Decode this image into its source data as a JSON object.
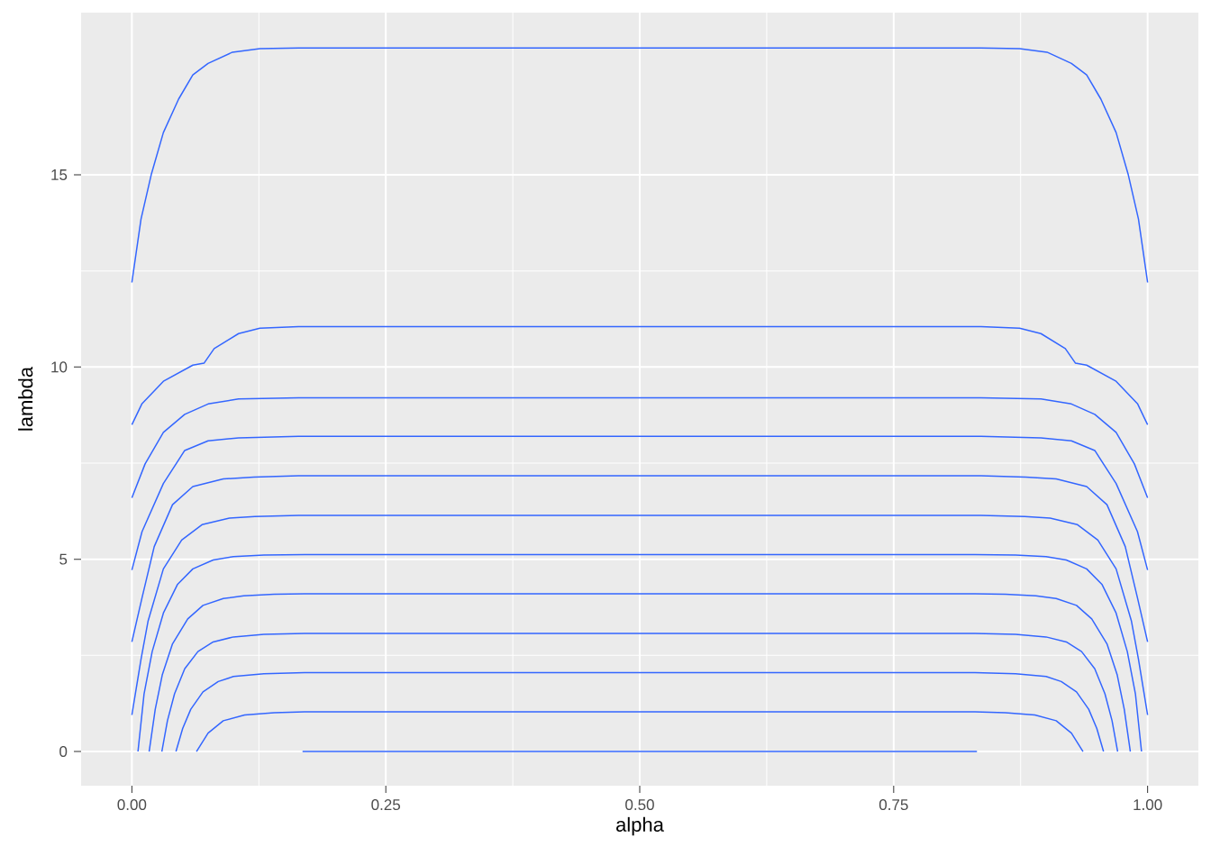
{
  "chart_data": {
    "type": "line",
    "xlabel": "alpha",
    "ylabel": "lambda",
    "xlim": [
      -0.05,
      1.05
    ],
    "ylim": [
      -0.89,
      19.22
    ],
    "xticks": [
      {
        "value": 0,
        "label": "0.00"
      },
      {
        "value": 0.25,
        "label": "0.25"
      },
      {
        "value": 0.5,
        "label": "0.50"
      },
      {
        "value": 0.75,
        "label": "0.75"
      },
      {
        "value": 1,
        "label": "1.00"
      }
    ],
    "yticks": [
      0,
      5,
      10,
      15
    ],
    "grid": true,
    "marker": "none",
    "line_style": "solid",
    "series": [
      {
        "color": "#3366ff",
        "x": [
          0,
          0.009,
          0.019,
          0.031,
          0.046,
          0.06,
          0.075,
          0.099,
          0.126,
          0.164,
          0.836,
          0.874,
          0.901,
          0.925,
          0.94,
          0.954,
          0.969,
          0.981,
          0.991,
          1
        ],
        "values": [
          12.2,
          13.85,
          15.0,
          16.1,
          16.97,
          17.6,
          17.9,
          18.19,
          18.28,
          18.3,
          18.3,
          18.28,
          18.19,
          17.9,
          17.6,
          16.97,
          16.1,
          15.0,
          13.85,
          12.2
        ]
      },
      {
        "color": "#3366ff",
        "x": [
          0,
          0.01,
          0.031,
          0.06,
          0.071,
          0.081,
          0.105,
          0.126,
          0.164,
          0.836,
          0.874,
          0.895,
          0.919,
          0.929,
          0.94,
          0.969,
          0.99,
          1
        ],
        "values": [
          8.5,
          9.05,
          9.63,
          10.05,
          10.1,
          10.48,
          10.87,
          11.01,
          11.05,
          11.05,
          11.01,
          10.87,
          10.48,
          10.1,
          10.05,
          9.63,
          9.05,
          8.5
        ]
      },
      {
        "color": "#3366ff",
        "x": [
          0,
          0.013,
          0.031,
          0.052,
          0.075,
          0.105,
          0.164,
          0.836,
          0.895,
          0.925,
          0.948,
          0.969,
          0.987,
          1
        ],
        "values": [
          6.6,
          7.48,
          8.3,
          8.77,
          9.04,
          9.17,
          9.2,
          9.2,
          9.17,
          9.04,
          8.77,
          8.3,
          7.48,
          6.6
        ]
      },
      {
        "color": "#3366ff",
        "x": [
          0,
          0.01,
          0.031,
          0.052,
          0.075,
          0.105,
          0.164,
          0.836,
          0.895,
          0.925,
          0.948,
          0.969,
          0.99,
          1
        ],
        "values": [
          4.72,
          5.72,
          6.97,
          7.83,
          8.08,
          8.16,
          8.2,
          8.2,
          8.16,
          8.08,
          7.83,
          6.97,
          5.72,
          4.72
        ]
      },
      {
        "color": "#3366ff",
        "x": [
          0,
          0.01,
          0.022,
          0.04,
          0.06,
          0.09,
          0.12,
          0.164,
          0.836,
          0.88,
          0.91,
          0.94,
          0.96,
          0.978,
          0.99,
          1
        ],
        "values": [
          2.85,
          4.0,
          5.33,
          6.42,
          6.89,
          7.09,
          7.14,
          7.17,
          7.17,
          7.14,
          7.09,
          6.89,
          6.42,
          5.33,
          4.0,
          2.85
        ]
      },
      {
        "color": "#3366ff",
        "x": [
          0,
          0.009,
          0.016,
          0.031,
          0.049,
          0.069,
          0.096,
          0.121,
          0.164,
          0.836,
          0.879,
          0.904,
          0.931,
          0.951,
          0.969,
          0.984,
          0.991,
          1
        ],
        "values": [
          0.95,
          2.4,
          3.4,
          4.75,
          5.5,
          5.9,
          6.07,
          6.11,
          6.14,
          6.14,
          6.11,
          6.07,
          5.9,
          5.5,
          4.75,
          3.4,
          2.4,
          0.95
        ]
      },
      {
        "color": "#3366ff",
        "x": [
          0.006,
          0.012,
          0.02,
          0.031,
          0.045,
          0.06,
          0.08,
          0.1,
          0.13,
          0.17,
          0.83,
          0.87,
          0.9,
          0.92,
          0.94,
          0.955,
          0.969,
          0.98,
          0.988,
          0.994
        ],
        "values": [
          0,
          1.5,
          2.6,
          3.6,
          4.35,
          4.75,
          4.98,
          5.07,
          5.11,
          5.12,
          5.12,
          5.11,
          5.07,
          4.98,
          4.75,
          4.35,
          3.6,
          2.6,
          1.5,
          0
        ]
      },
      {
        "color": "#3366ff",
        "x": [
          0.017,
          0.023,
          0.03,
          0.04,
          0.055,
          0.07,
          0.09,
          0.11,
          0.14,
          0.17,
          0.83,
          0.86,
          0.89,
          0.91,
          0.93,
          0.945,
          0.96,
          0.97,
          0.977,
          0.983
        ],
        "values": [
          0,
          1.1,
          2.0,
          2.8,
          3.45,
          3.8,
          3.98,
          4.05,
          4.09,
          4.1,
          4.1,
          4.09,
          4.05,
          3.98,
          3.8,
          3.45,
          2.8,
          2.0,
          1.1,
          0
        ]
      },
      {
        "color": "#3366ff",
        "x": [
          0.0295,
          0.035,
          0.042,
          0.052,
          0.065,
          0.08,
          0.1,
          0.13,
          0.17,
          0.83,
          0.87,
          0.9,
          0.92,
          0.935,
          0.948,
          0.958,
          0.965,
          0.9705
        ],
        "values": [
          0,
          0.8,
          1.5,
          2.15,
          2.6,
          2.85,
          2.98,
          3.05,
          3.07,
          3.07,
          3.05,
          2.98,
          2.85,
          2.6,
          2.15,
          1.5,
          0.8,
          0
        ]
      },
      {
        "color": "#3366ff",
        "x": [
          0.0434,
          0.05,
          0.058,
          0.07,
          0.085,
          0.1,
          0.13,
          0.17,
          0.83,
          0.87,
          0.9,
          0.915,
          0.93,
          0.942,
          0.95,
          0.9566
        ],
        "values": [
          0,
          0.6,
          1.1,
          1.55,
          1.82,
          1.95,
          2.02,
          2.05,
          2.05,
          2.02,
          1.95,
          1.82,
          1.55,
          1.1,
          0.6,
          0
        ]
      },
      {
        "color": "#3366ff",
        "x": [
          0.0636,
          0.075,
          0.09,
          0.111,
          0.14,
          0.17,
          0.83,
          0.86,
          0.889,
          0.91,
          0.925,
          0.9364
        ],
        "values": [
          0,
          0.48,
          0.8,
          0.95,
          1.01,
          1.03,
          1.03,
          1.01,
          0.95,
          0.8,
          0.48,
          0
        ]
      },
      {
        "color": "#3366ff",
        "x": [
          0.168,
          0.832
        ],
        "values": [
          0,
          0
        ]
      }
    ]
  }
}
